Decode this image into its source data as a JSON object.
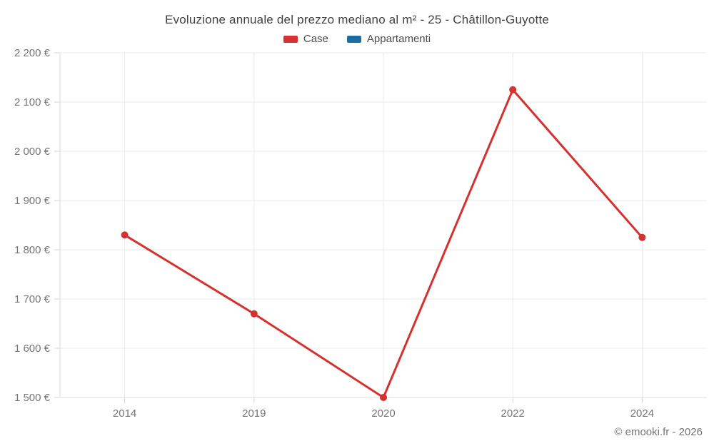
{
  "chart": {
    "title": "Evoluzione annuale del prezzo mediano al m² - 25 - Châtillon-Guyotte"
  },
  "footer": {
    "credit": "© emooki.fr - 2026"
  },
  "chart_data": {
    "type": "line",
    "title": "Evoluzione annuale del prezzo mediano al m² - 25 - Châtillon-Guyotte",
    "categories": [
      "2014",
      "2019",
      "2020",
      "2022",
      "2024"
    ],
    "series": [
      {
        "name": "Case",
        "color": "#d5312e",
        "values": [
          1830,
          1670,
          1500,
          2125,
          1825
        ]
      },
      {
        "name": "Appartamenti",
        "color": "#1c6ea4",
        "values": [
          null,
          null,
          null,
          null,
          null
        ]
      }
    ],
    "xlabel": "",
    "ylabel": "",
    "ylim": [
      1500,
      2200
    ],
    "ytick_step": 100,
    "ytick_labels": [
      "1 500 €",
      "1 600 €",
      "1 700 €",
      "1 800 €",
      "1 900 €",
      "2 000 €",
      "2 100 €",
      "2 200 €"
    ],
    "grid": true,
    "legend_position": "top"
  },
  "style_colors": {
    "grid_line": "#ebebeb",
    "axis_line": "#dedede",
    "tick_mark": "#d6d6d6",
    "tick_label": "#757575",
    "title_text": "#424242",
    "legend_text": "#4d4d4d"
  }
}
